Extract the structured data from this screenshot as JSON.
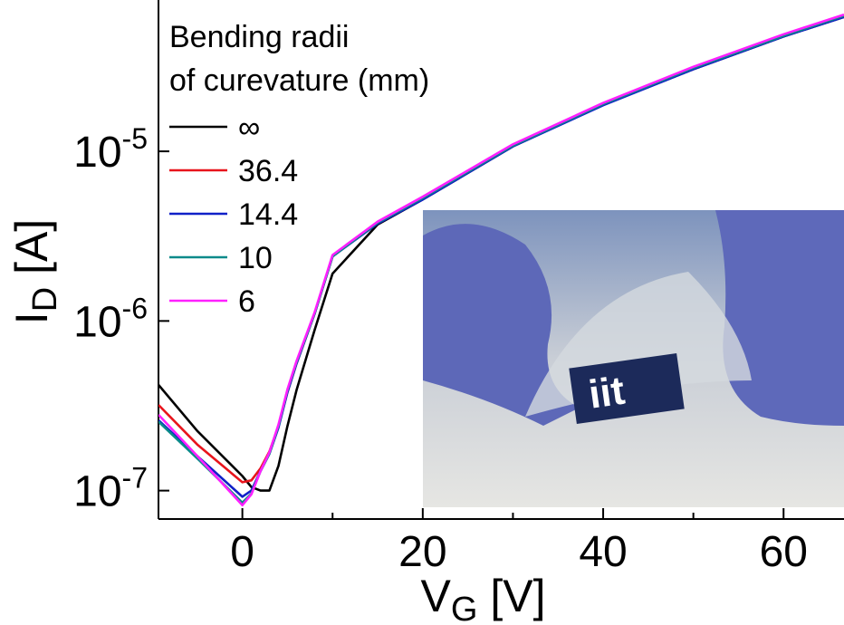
{
  "chart_data": {
    "type": "line",
    "log_y": true,
    "xlabel": {
      "text": "V",
      "subscript": "G",
      "suffix": " [V]"
    },
    "ylabel": {
      "text": "I",
      "subscript": "D",
      "suffix": " [A]"
    },
    "legend_title": [
      "Bending radii",
      "of curevature (mm)"
    ],
    "legend_position": "upper left",
    "xlim": [
      -9.3,
      66.7
    ],
    "ylim": [
      6.8e-08,
      7.8e-05
    ],
    "xticks": [
      0,
      20,
      40,
      60
    ],
    "xminor_ticks": [
      10,
      30,
      50
    ],
    "yticks": [
      {
        "value": 1e-07,
        "label": "10-7"
      },
      {
        "value": 1e-06,
        "label": "10-6"
      },
      {
        "value": 1e-05,
        "label": "10-5"
      }
    ],
    "x": [
      -9.3,
      -5,
      0,
      1,
      2,
      3,
      4,
      5,
      6,
      8,
      10,
      15,
      20,
      30,
      40,
      50,
      60,
      66.7
    ],
    "series": [
      {
        "name": "∞",
        "color": "#000000",
        "values": [
          4.2e-07,
          2.25e-07,
          1.22e-07,
          1.05e-07,
          1e-07,
          1e-07,
          1.4e-07,
          2.4e-07,
          3.9e-07,
          8.8e-07,
          1.9e-06,
          3.7e-06,
          5.2e-06,
          1.07e-05,
          1.88e-05,
          3.05e-05,
          4.75e-05,
          6.2e-05
        ]
      },
      {
        "name": "36.4",
        "color": "#e8141c",
        "values": [
          3.2e-07,
          1.87e-07,
          1.12e-07,
          1.15e-07,
          1.35e-07,
          1.7e-07,
          2.4e-07,
          3.8e-07,
          5.6e-07,
          1.1e-06,
          2.4e-06,
          3.8e-06,
          5.3e-06,
          1.09e-05,
          1.9e-05,
          3.1e-05,
          4.8e-05,
          6.3e-05
        ]
      },
      {
        "name": "14.4",
        "color": "#1020c8",
        "values": [
          2.6e-07,
          1.6e-07,
          9.2e-08,
          1e-07,
          1.3e-07,
          1.65e-07,
          2.35e-07,
          3.8e-07,
          5.6e-07,
          1.1e-06,
          2.4e-06,
          3.75e-06,
          5.2e-06,
          1.07e-05,
          1.87e-05,
          3.05e-05,
          4.75e-05,
          6.2e-05
        ]
      },
      {
        "name": "10",
        "color": "#0a8a8a",
        "values": [
          2.55e-07,
          1.55e-07,
          8.5e-08,
          9.6e-08,
          1.3e-07,
          1.65e-07,
          2.4e-07,
          3.9e-07,
          5.7e-07,
          1.1e-06,
          2.4e-06,
          3.8e-06,
          5.3e-06,
          1.08e-05,
          1.9e-05,
          3.1e-05,
          4.8e-05,
          6.3e-05
        ]
      },
      {
        "name": "6",
        "color": "#ff20ff",
        "values": [
          2.8e-07,
          1.6e-07,
          8.2e-08,
          9.5e-08,
          1.3e-07,
          1.68e-07,
          2.45e-07,
          3.95e-07,
          5.8e-07,
          1.12e-06,
          2.45e-06,
          3.85e-06,
          5.4e-06,
          1.1e-05,
          1.93e-05,
          3.15e-05,
          4.9e-05,
          6.4e-05
        ]
      }
    ]
  }
}
